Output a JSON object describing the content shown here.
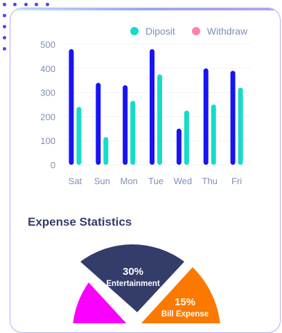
{
  "legend": [
    {
      "label": "Diposit",
      "color": "#16dbcc"
    },
    {
      "label": "Withdraw",
      "color": "#ff82ac"
    }
  ],
  "chart_data": {
    "type": "bar",
    "categories": [
      "Sat",
      "Sun",
      "Mon",
      "Tue",
      "Wed",
      "Thu",
      "Fri"
    ],
    "series": [
      {
        "values": [
          480,
          340,
          330,
          480,
          150,
          400,
          390
        ],
        "color": "#1814f3"
      },
      {
        "values": [
          240,
          115,
          265,
          375,
          225,
          250,
          320
        ],
        "color": "#16dbcc"
      }
    ],
    "ylim": [
      0,
      500
    ],
    "yticks": [
      0,
      100,
      200,
      300,
      400,
      500
    ],
    "grid": true
  },
  "expense": {
    "title": "Expense Statistics",
    "slices": [
      {
        "percent": "30%",
        "label": "Entertainment",
        "color": "#343c6a"
      },
      {
        "percent": "15%",
        "label": "Bill Expense",
        "color": "#fc7900"
      },
      {
        "percent": "",
        "label": "",
        "color": "#fa00ff"
      }
    ]
  }
}
